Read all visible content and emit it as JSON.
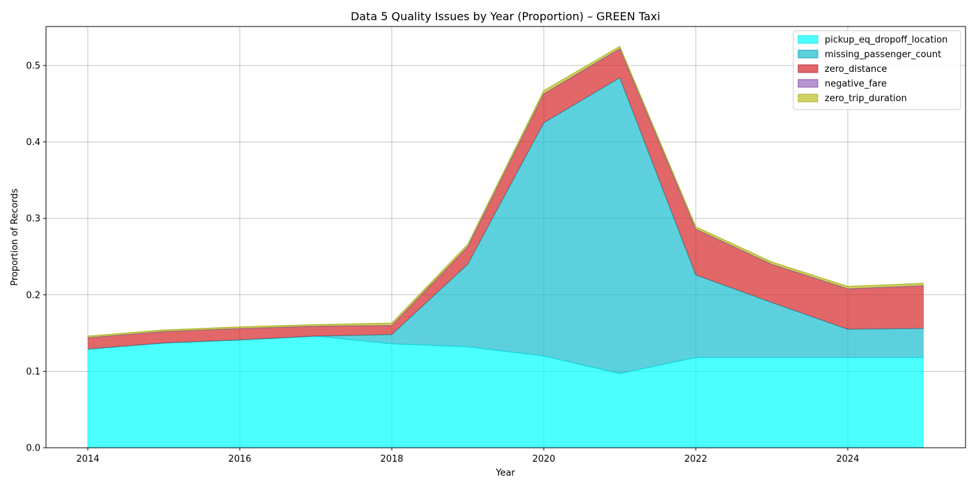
{
  "chart_data": {
    "type": "area",
    "stacked": true,
    "title": "Data 5 Quality Issues by Year (Proportion) – GREEN Taxi",
    "xlabel": "Year",
    "ylabel": "Proportion of Records",
    "x": [
      2014,
      2015,
      2016,
      2017,
      2018,
      2019,
      2020,
      2021,
      2022,
      2023,
      2024,
      2025
    ],
    "xlim": [
      2013.45,
      2025.55
    ],
    "ylim": [
      0,
      0.551
    ],
    "xticks": [
      2014,
      2016,
      2018,
      2020,
      2022,
      2024
    ],
    "yticks": [
      0.0,
      0.1,
      0.2,
      0.3,
      0.4,
      0.5
    ],
    "xtick_labels": [
      "2014",
      "2016",
      "2018",
      "2020",
      "2022",
      "2024"
    ],
    "ytick_labels": [
      "0.0",
      "0.1",
      "0.2",
      "0.3",
      "0.4",
      "0.5"
    ],
    "grid": true,
    "legend_position": "top-right",
    "series": [
      {
        "name": "pickup_eq_dropoff_location",
        "color": "#00ffff",
        "edge": "#17e3e6",
        "values": [
          0.129,
          0.137,
          0.141,
          0.146,
          0.136,
          0.132,
          0.12,
          0.097,
          0.118,
          0.118,
          0.118,
          0.118
        ]
      },
      {
        "name": "missing_passenger_count",
        "color": "#17becf",
        "edge": "#17a7b8",
        "values": [
          0.0,
          0.0,
          0.0,
          0.0,
          0.012,
          0.108,
          0.305,
          0.387,
          0.108,
          0.072,
          0.037,
          0.038
        ]
      },
      {
        "name": "zero_distance",
        "color": "#d62728",
        "edge": "#b83446",
        "values": [
          0.015,
          0.015,
          0.015,
          0.013,
          0.012,
          0.023,
          0.038,
          0.038,
          0.06,
          0.05,
          0.053,
          0.056
        ]
      },
      {
        "name": "negative_fare",
        "color": "#9467bd",
        "edge": "#8a5aa8",
        "values": [
          0.0,
          0.0,
          0.0,
          0.0,
          0.0,
          0.0,
          0.0,
          0.0,
          0.0,
          0.0,
          0.0,
          0.0
        ]
      },
      {
        "name": "zero_trip_duration",
        "color": "#bcbd22",
        "edge": "#b5b530",
        "values": [
          0.002,
          0.002,
          0.002,
          0.002,
          0.003,
          0.003,
          0.004,
          0.003,
          0.003,
          0.003,
          0.003,
          0.003
        ]
      }
    ]
  }
}
